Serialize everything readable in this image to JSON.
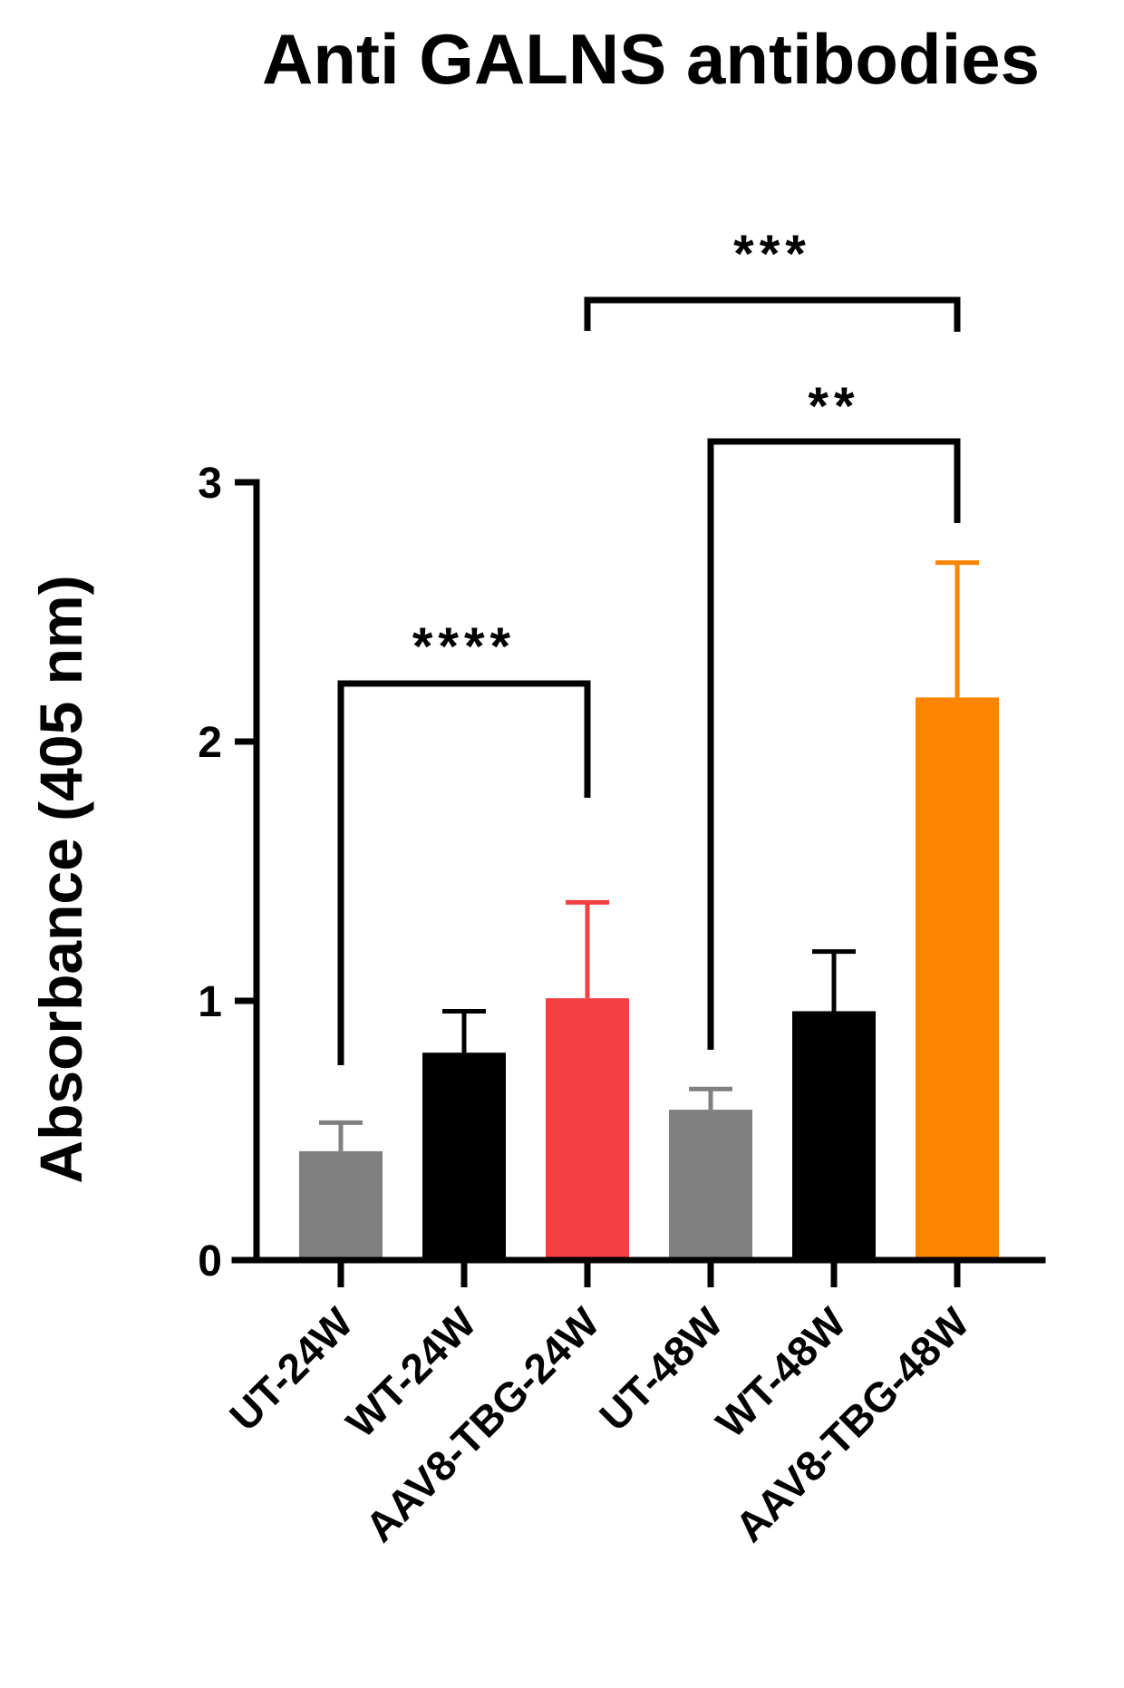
{
  "chart_data": {
    "type": "bar",
    "title": "Anti GALNS antibodies",
    "xlabel": "",
    "ylabel": "Absorbance (405 nm)",
    "ylim": [
      0,
      3
    ],
    "yticks": [
      "0",
      "1",
      "2",
      "3"
    ],
    "grid": false,
    "categories": [
      "UT-24W",
      "WT-24W",
      "AAV8-TBG-24W",
      "UT-48W",
      "WT-48W",
      "AAV8-TBG-48W"
    ],
    "values": [
      0.42,
      0.8,
      1.01,
      0.58,
      0.96,
      2.17
    ],
    "errors": [
      0.11,
      0.16,
      0.37,
      0.08,
      0.23,
      0.52
    ],
    "colors": [
      "#808080",
      "#000000",
      "#f44042",
      "#808080",
      "#000000",
      "#ff8400"
    ],
    "significance": [
      {
        "from": "UT-24W",
        "to": "AAV8-TBG-24W",
        "label": "****"
      },
      {
        "from": "UT-48W",
        "to": "AAV8-TBG-48W",
        "label": "**"
      },
      {
        "from": "AAV8-TBG-24W",
        "to": "AAV8-TBG-48W",
        "label": "***"
      }
    ]
  }
}
